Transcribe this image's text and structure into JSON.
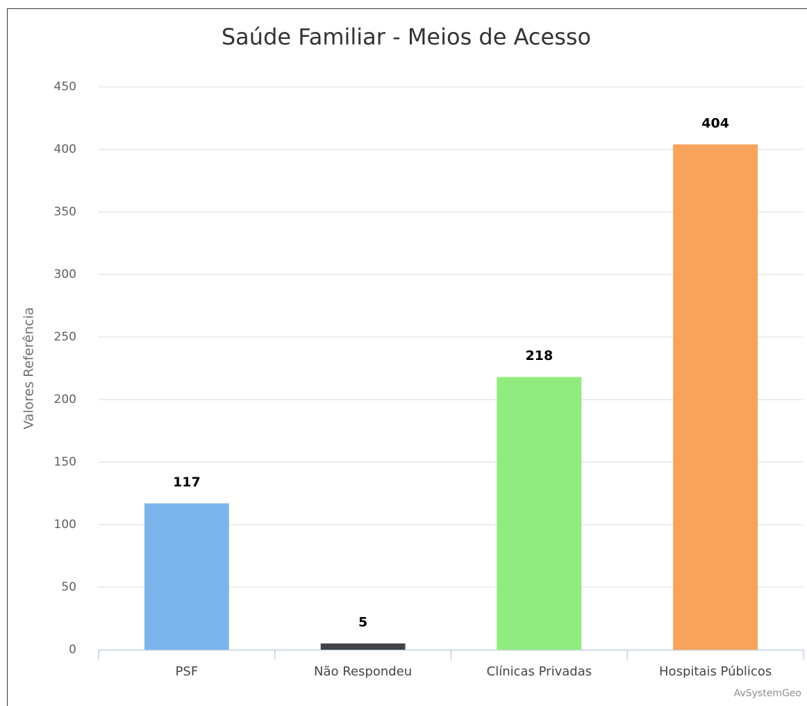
{
  "chart_data": {
    "type": "bar",
    "title": "Saúde Familiar - Meios de Acesso",
    "y_axis_label": "Valores Referência",
    "categories": [
      "PSF",
      "Não Respondeu",
      "Clínicas Privadas",
      "Hospitais Públicos"
    ],
    "values": [
      117,
      5,
      218,
      404
    ],
    "colors": [
      "#7cb5ec",
      "#434348",
      "#90ed7d",
      "#f7a35c"
    ],
    "ylim": [
      0,
      450
    ],
    "yticks": [
      0,
      50,
      100,
      150,
      200,
      250,
      300,
      350,
      400,
      450
    ],
    "grid": true,
    "credits": "AvSystemGeo"
  }
}
